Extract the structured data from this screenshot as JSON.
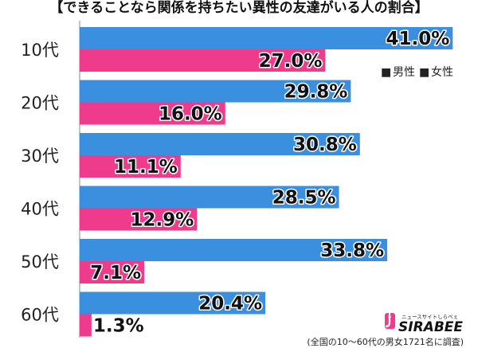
{
  "chart_data": {
    "type": "bar",
    "orientation": "horizontal",
    "title": "【できることなら関係を持ちたい異性の友達がいる人の割合】",
    "categories": [
      "10代",
      "20代",
      "30代",
      "40代",
      "50代",
      "60代"
    ],
    "series": [
      {
        "name": "男性",
        "color": "#3a8fdf",
        "values": [
          41.0,
          29.8,
          30.8,
          28.5,
          33.8,
          20.4
        ],
        "labels": [
          "41.0%",
          "29.8%",
          "30.8%",
          "28.5%",
          "33.8%",
          "20.4%"
        ]
      },
      {
        "name": "女性",
        "color": "#ef3b8c",
        "values": [
          27.0,
          16.0,
          11.1,
          12.9,
          7.1,
          1.3
        ],
        "labels": [
          "27.0%",
          "16.0%",
          "11.1%",
          "12.9%",
          "7.1%",
          "1.3%"
        ]
      }
    ],
    "xlim": [
      0,
      41.5
    ],
    "grid": false,
    "legend_position": "top-right"
  },
  "legend": {
    "male_marker": "■",
    "female_marker": "■"
  },
  "footnote": "(全国の10～60代の男女1721名に調査)",
  "logo": {
    "text": "SIRABEE",
    "tagline": "ニュースサイトしらべぇ",
    "icon": "ladle-logo-icon"
  }
}
